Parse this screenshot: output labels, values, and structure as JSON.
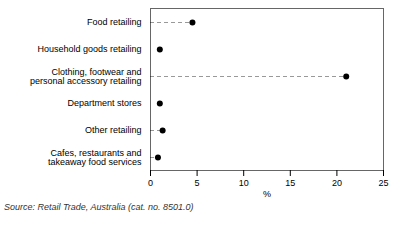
{
  "chart_data": {
    "type": "dot",
    "categories": [
      "Food retailing",
      "Household goods retailing",
      "Clothing, footwear and\npersonal accessory retailing",
      "Department stores",
      "Other retailing",
      "Cafes, restaurants and\ntakeaway food services"
    ],
    "values": [
      4.5,
      1.0,
      21.0,
      1.0,
      1.3,
      0.8
    ],
    "line_style": [
      "dashed",
      "none",
      "dashed",
      "none",
      "dashed",
      "dashed"
    ],
    "xlabel": "%",
    "xlim": [
      0,
      25
    ],
    "xticks": [
      0,
      5,
      10,
      15,
      20,
      25
    ],
    "grid": false,
    "caption": "Source: Retail Trade, Australia (cat. no. 8501.0)"
  }
}
